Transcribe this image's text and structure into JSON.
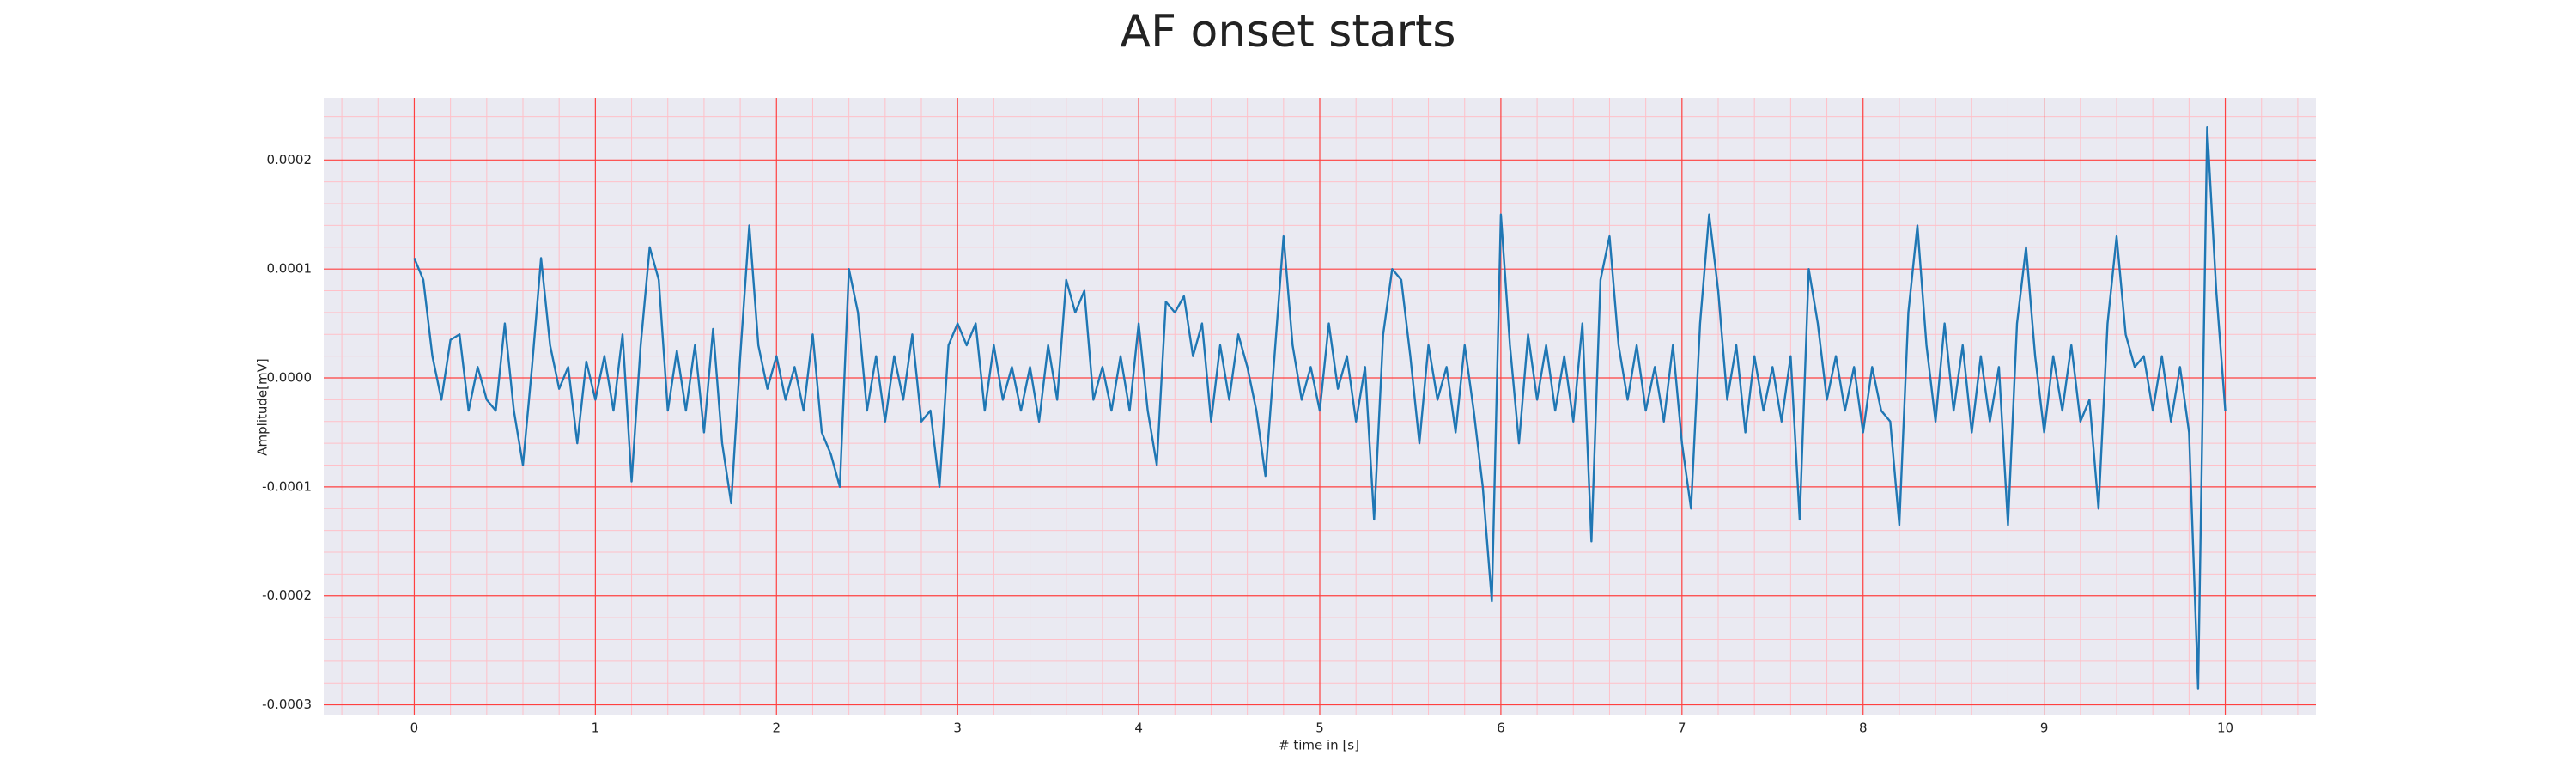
{
  "chart_data": {
    "type": "line",
    "title": "AF onset starts",
    "xlabel": "# time in [s]",
    "ylabel": "Amplitude[mV]",
    "color": "#1f77b4",
    "grid": true,
    "minor_grid": true,
    "xlim": [
      -0.5,
      10.5
    ],
    "xticks": [
      0,
      1,
      2,
      3,
      4,
      5,
      6,
      7,
      8,
      9,
      10
    ],
    "ylim": [
      -0.000309,
      0.000257
    ],
    "yticks": [
      -0.0003,
      -0.0002,
      -0.0001,
      {
        "value": 0,
        "label": "0.0000"
      },
      0.0001,
      0.0002
    ],
    "x": [
      0,
      0.05,
      0.1,
      0.15,
      0.2,
      0.25,
      0.3,
      0.35,
      0.4,
      0.45,
      0.5,
      0.55,
      0.6,
      0.65,
      0.7,
      0.75,
      0.8,
      0.85,
      0.9,
      0.95,
      1,
      1.05,
      1.1,
      1.15,
      1.2,
      1.25,
      1.3,
      1.35,
      1.4,
      1.45,
      1.5,
      1.55,
      1.6,
      1.65,
      1.7,
      1.75,
      1.8,
      1.85,
      1.9,
      1.95,
      2,
      2.05,
      2.1,
      2.15,
      2.2,
      2.25,
      2.3,
      2.35,
      2.4,
      2.45,
      2.5,
      2.55,
      2.6,
      2.65,
      2.7,
      2.75,
      2.8,
      2.85,
      2.9,
      2.95,
      3,
      3.05,
      3.1,
      3.15,
      3.2,
      3.25,
      3.3,
      3.35,
      3.4,
      3.45,
      3.5,
      3.55,
      3.6,
      3.65,
      3.7,
      3.75,
      3.8,
      3.85,
      3.9,
      3.95,
      4,
      4.05,
      4.1,
      4.15,
      4.2,
      4.25,
      4.3,
      4.35,
      4.4,
      4.45,
      4.5,
      4.55,
      4.6,
      4.65,
      4.7,
      4.75,
      4.8,
      4.85,
      4.9,
      4.95,
      5,
      5.05,
      5.1,
      5.15,
      5.2,
      5.25,
      5.3,
      5.35,
      5.4,
      5.45,
      5.5,
      5.55,
      5.6,
      5.65,
      5.7,
      5.75,
      5.8,
      5.85,
      5.9,
      5.95,
      6,
      6.05,
      6.1,
      6.15,
      6.2,
      6.25,
      6.3,
      6.35,
      6.4,
      6.45,
      6.5,
      6.55,
      6.6,
      6.65,
      6.7,
      6.75,
      6.8,
      6.85,
      6.9,
      6.95,
      7,
      7.05,
      7.1,
      7.15,
      7.2,
      7.25,
      7.3,
      7.35,
      7.4,
      7.45,
      7.5,
      7.55,
      7.6,
      7.65,
      7.7,
      7.75,
      7.8,
      7.85,
      7.9,
      7.95,
      8,
      8.05,
      8.1,
      8.15,
      8.2,
      8.25,
      8.3,
      8.35,
      8.4,
      8.45,
      8.5,
      8.55,
      8.6,
      8.65,
      8.7,
      8.75,
      8.8,
      8.85,
      8.9,
      8.95,
      9,
      9.05,
      9.1,
      9.15,
      9.2,
      9.25,
      9.3,
      9.35,
      9.4,
      9.45,
      9.5,
      9.55,
      9.6,
      9.65,
      9.7,
      9.75,
      9.8,
      9.85,
      9.9,
      9.95,
      10
    ],
    "values": [
      0.00011,
      9e-05,
      2e-05,
      -2e-05,
      3.5e-05,
      4e-05,
      -3e-05,
      1e-05,
      -2e-05,
      -3e-05,
      5e-05,
      -3e-05,
      -8e-05,
      1e-05,
      0.00011,
      3e-05,
      -1e-05,
      1e-05,
      -6e-05,
      1.5e-05,
      -2e-05,
      2e-05,
      -3e-05,
      4e-05,
      -9.5e-05,
      3e-05,
      0.00012,
      9e-05,
      -3e-05,
      2.5e-05,
      -3e-05,
      3e-05,
      -5e-05,
      4.5e-05,
      -6e-05,
      -0.000115,
      2e-05,
      0.00014,
      3e-05,
      -1e-05,
      2e-05,
      -2e-05,
      1e-05,
      -3e-05,
      4e-05,
      -5e-05,
      -7e-05,
      -0.0001,
      0.0001,
      6e-05,
      -3e-05,
      2e-05,
      -4e-05,
      2e-05,
      -2e-05,
      4e-05,
      -4e-05,
      -3e-05,
      -0.0001,
      3e-05,
      5e-05,
      3e-05,
      5e-05,
      -3e-05,
      3e-05,
      -2e-05,
      1e-05,
      -3e-05,
      1e-05,
      -4e-05,
      3e-05,
      -2e-05,
      9e-05,
      6e-05,
      8e-05,
      -2e-05,
      1e-05,
      -3e-05,
      2e-05,
      -3e-05,
      5e-05,
      -3e-05,
      -8e-05,
      7e-05,
      6e-05,
      7.5e-05,
      2e-05,
      5e-05,
      -4e-05,
      3e-05,
      -2e-05,
      4e-05,
      1e-05,
      -3e-05,
      -9e-05,
      2e-05,
      0.00013,
      3e-05,
      -2e-05,
      1e-05,
      -3e-05,
      5e-05,
      -1e-05,
      2e-05,
      -4e-05,
      1e-05,
      -0.00013,
      4e-05,
      0.0001,
      9e-05,
      2e-05,
      -6e-05,
      3e-05,
      -2e-05,
      1e-05,
      -5e-05,
      3e-05,
      -3e-05,
      -0.0001,
      -0.000205,
      0.00015,
      3e-05,
      -6e-05,
      4e-05,
      -2e-05,
      3e-05,
      -3e-05,
      2e-05,
      -4e-05,
      5e-05,
      -0.00015,
      9e-05,
      0.00013,
      3e-05,
      -2e-05,
      3e-05,
      -3e-05,
      1e-05,
      -4e-05,
      3e-05,
      -6e-05,
      -0.00012,
      5e-05,
      0.00015,
      8e-05,
      -2e-05,
      3e-05,
      -5e-05,
      2e-05,
      -3e-05,
      1e-05,
      -4e-05,
      2e-05,
      -0.00013,
      0.0001,
      5e-05,
      -2e-05,
      2e-05,
      -3e-05,
      1e-05,
      -5e-05,
      1e-05,
      -3e-05,
      -4e-05,
      -0.000135,
      6e-05,
      0.00014,
      3e-05,
      -4e-05,
      5e-05,
      -3e-05,
      3e-05,
      -5e-05,
      2e-05,
      -4e-05,
      1e-05,
      -0.000135,
      5e-05,
      0.00012,
      2e-05,
      -5e-05,
      2e-05,
      -3e-05,
      3e-05,
      -4e-05,
      -2e-05,
      -0.00012,
      5e-05,
      0.00013,
      4e-05,
      1e-05,
      2e-05,
      -3e-05,
      2e-05,
      -4e-05,
      1e-05,
      -5e-05,
      -0.000285,
      0.00023,
      8e-05,
      -3e-05
    ]
  }
}
